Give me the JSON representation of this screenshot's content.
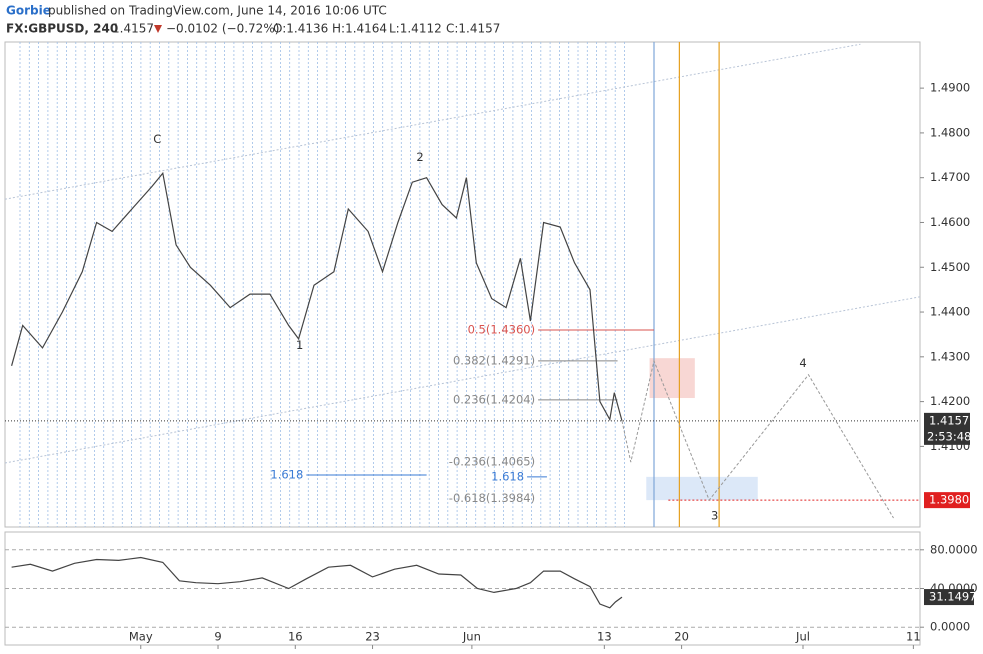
{
  "header": {
    "author": "Gorbie",
    "published": "published on TradingView.com, June 14, 2016 10:06 UTC",
    "symbol": "FX:GBPUSD, 240",
    "last": "1.4157",
    "change": "−0.0102 (−0.72%)",
    "open": "O:1.4136",
    "high": "H:1.4164",
    "low": "L:1.4112",
    "close": "C:1.4157"
  },
  "chart_data": [
    {
      "type": "line",
      "color": "#444444",
      "x": [
        111.3,
        112.3,
        114.1,
        115.9,
        117.7,
        119.0,
        120.4,
        122.2,
        124.0,
        125.0,
        126.2,
        127.5,
        129.3,
        131.1,
        132.9,
        134.7,
        136.4,
        137.3,
        138.7,
        140.5,
        141.8,
        143.6,
        144.9,
        146.3,
        147.6,
        148.9,
        150.3,
        151.6,
        152.5,
        153.4,
        154.8,
        156.1,
        157.4,
        158.3,
        159.5,
        161.0,
        162.3,
        163.7,
        164.6,
        165.5,
        165.9,
        166.6
      ],
      "values": [
        1.428,
        1.437,
        1.432,
        1.44,
        1.449,
        1.46,
        1.458,
        1.463,
        1.468,
        1.471,
        1.455,
        1.45,
        1.446,
        1.441,
        1.444,
        1.444,
        1.437,
        1.434,
        1.446,
        1.449,
        1.463,
        1.458,
        1.449,
        1.46,
        1.469,
        1.47,
        1.464,
        1.461,
        1.47,
        1.451,
        1.443,
        1.441,
        1.452,
        1.438,
        1.46,
        1.459,
        1.451,
        1.445,
        1.42,
        1.416,
        1.422,
        1.4157
      ],
      "xlim": [
        110.7,
        193.6
      ],
      "ylim": [
        1.392,
        1.5003
      ],
      "xticks": [
        {
          "value": 123,
          "label": "May"
        },
        {
          "value": 130,
          "label": "9"
        },
        {
          "value": 137,
          "label": "16"
        },
        {
          "value": 144,
          "label": "23"
        },
        {
          "value": 153,
          "label": "Jun"
        },
        {
          "value": 165,
          "label": "13"
        },
        {
          "value": 172,
          "label": "20"
        },
        {
          "value": 183,
          "label": "Jul"
        },
        {
          "value": 193,
          "label": "11"
        }
      ],
      "yticks": [
        {
          "value": 1.41,
          "label": "1.4100"
        },
        {
          "value": 1.42,
          "label": "1.4200"
        },
        {
          "value": 1.43,
          "label": "1.4300"
        },
        {
          "value": 1.44,
          "label": "1.4400"
        },
        {
          "value": 1.45,
          "label": "1.4500"
        },
        {
          "value": 1.46,
          "label": "1.4600"
        },
        {
          "value": 1.47,
          "label": "1.4700"
        },
        {
          "value": 1.48,
          "label": "1.4800"
        },
        {
          "value": 1.49,
          "label": "1.4900"
        }
      ],
      "annotations": [
        {
          "text": "C",
          "x": 124.5,
          "y": 1.4785
        },
        {
          "text": "1",
          "x": 137.4,
          "y": 1.4325
        },
        {
          "text": "2",
          "x": 148.3,
          "y": 1.4745
        },
        {
          "text": "3",
          "x": 175.0,
          "y": 1.3945
        },
        {
          "text": "4",
          "x": 183.0,
          "y": 1.4285
        }
      ],
      "levels": [
        {
          "label": "0.5(1.4360)",
          "value": 1.436,
          "x1": 159.0,
          "x2": 169.5,
          "color": "#d9534f"
        },
        {
          "label": "0.382(1.4291)",
          "value": 1.4291,
          "x1": 159.0,
          "x2": 166.2,
          "color": "#888888"
        },
        {
          "label": "0.236(1.4204)",
          "value": 1.4204,
          "x1": 159.0,
          "x2": 166.2,
          "color": "#888888"
        },
        {
          "label": "-0.236(1.4065)",
          "value": 1.4065,
          "x1": 159.0,
          "x2": 159.0,
          "color": "#888888"
        },
        {
          "label": "-0.618(1.3984)",
          "value": 1.3984,
          "x1": 159.0,
          "x2": 159.0,
          "color": "#888888"
        },
        {
          "label": "1.618",
          "value": 1.4036,
          "x1": 138.0,
          "x2": 148.9,
          "color": "#3a7bd5"
        },
        {
          "label": "1.618",
          "value": 1.4032,
          "x1": 158.0,
          "x2": 159.8,
          "color": "#3a7bd5"
        }
      ],
      "trendlines": [
        {
          "x": [
            110.7,
            188.2
          ],
          "values": [
            1.4652,
            1.4998
          ]
        },
        {
          "x": [
            110.7,
            193.6
          ],
          "values": [
            1.4063,
            1.4434
          ]
        }
      ],
      "vlines": [
        {
          "x": 169.5,
          "color": "#7fa7d8"
        },
        {
          "x": 171.8,
          "color": "#e6a020"
        },
        {
          "x": 175.4,
          "color": "#e6a020"
        }
      ],
      "zones": [
        {
          "x": [
            169.1,
            173.2
          ],
          "values": [
            1.4297,
            1.4208
          ],
          "color": "#f8d7d4"
        },
        {
          "x": [
            168.8,
            178.9
          ],
          "values": [
            1.4032,
            1.398
          ],
          "color": "#dce8f8"
        }
      ],
      "projection": {
        "x": [
          166.6,
          167.4,
          169.5,
          174.5,
          183.5,
          191.2
        ],
        "values": [
          1.4157,
          1.4065,
          1.4291,
          1.398,
          1.426,
          1.394
        ]
      },
      "target": {
        "value": 1.398,
        "label": "1.3980",
        "x1": 170.8,
        "color": "#e02020"
      },
      "current": {
        "value": 1.4157,
        "label": "1.4157",
        "countdown": "2:53:48"
      }
    },
    {
      "type": "line",
      "color": "#444444",
      "x": [
        111.3,
        113.0,
        115.0,
        117.0,
        119.0,
        121.0,
        123.0,
        125.0,
        126.5,
        128.0,
        130.0,
        132.0,
        134.0,
        136.4,
        138.0,
        140.0,
        142.0,
        144.0,
        146.0,
        148.0,
        150.0,
        152.0,
        153.5,
        155.0,
        157.0,
        158.3,
        159.5,
        161.0,
        162.3,
        163.7,
        164.6,
        165.5,
        166.0,
        166.6
      ],
      "values": [
        62,
        65,
        58,
        66,
        70,
        69,
        72,
        67,
        48,
        46,
        45,
        47,
        51,
        40,
        50,
        62,
        64,
        52,
        60,
        64,
        55,
        54,
        40,
        36,
        40,
        46,
        58,
        58,
        50,
        42,
        24,
        20,
        26,
        31.1497
      ],
      "xlim": [
        110.7,
        193.6
      ],
      "ylim": [
        -18.4,
        98.4
      ],
      "yticks": [
        {
          "value": 80,
          "label": "80.0000"
        },
        {
          "value": 40,
          "label": "40.0000"
        },
        {
          "value": 0,
          "label": "0.0000"
        }
      ],
      "last": {
        "value": 31.1497,
        "label": "31.1497"
      }
    }
  ]
}
